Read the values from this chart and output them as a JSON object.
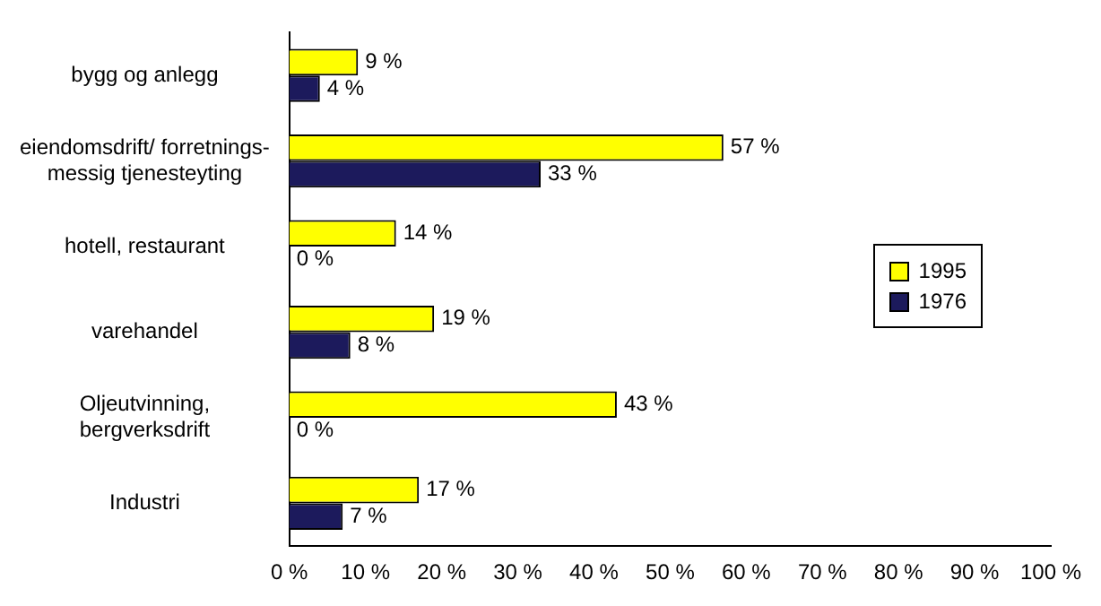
{
  "chart_data": {
    "type": "bar",
    "orientation": "horizontal",
    "categories": [
      "bygg og anlegg",
      "eiendomsdrift/ forretnings-\nmessig tjenesteyting",
      "hotell, restaurant",
      "varehandel",
      "Oljeutvinning,\nbergverksdrift",
      "Industri"
    ],
    "series": [
      {
        "name": "1995",
        "color": "#ffff00",
        "values": [
          9,
          57,
          14,
          19,
          43,
          17
        ],
        "value_labels": [
          "9 %",
          "57 %",
          "14 %",
          "19 %",
          "43 %",
          "17 %"
        ]
      },
      {
        "name": "1976",
        "color": "#1c1a5c",
        "values": [
          4,
          33,
          0,
          8,
          0,
          7
        ],
        "value_labels": [
          "4 %",
          "33 %",
          "0 %",
          "8 %",
          "0 %",
          "7 %"
        ]
      }
    ],
    "xlim": [
      0,
      100
    ],
    "xticks": [
      {
        "value": 0,
        "label": "0 %"
      },
      {
        "value": 10,
        "label": "10 %"
      },
      {
        "value": 20,
        "label": "20 %"
      },
      {
        "value": 30,
        "label": "30 %"
      },
      {
        "value": 40,
        "label": "40 %"
      },
      {
        "value": 50,
        "label": "50 %"
      },
      {
        "value": 60,
        "label": "60 %"
      },
      {
        "value": 70,
        "label": "70 %"
      },
      {
        "value": 80,
        "label": "80 %"
      },
      {
        "value": 90,
        "label": "90 %"
      },
      {
        "value": 100,
        "label": "100 %"
      }
    ],
    "grid": false,
    "legend": "right"
  }
}
